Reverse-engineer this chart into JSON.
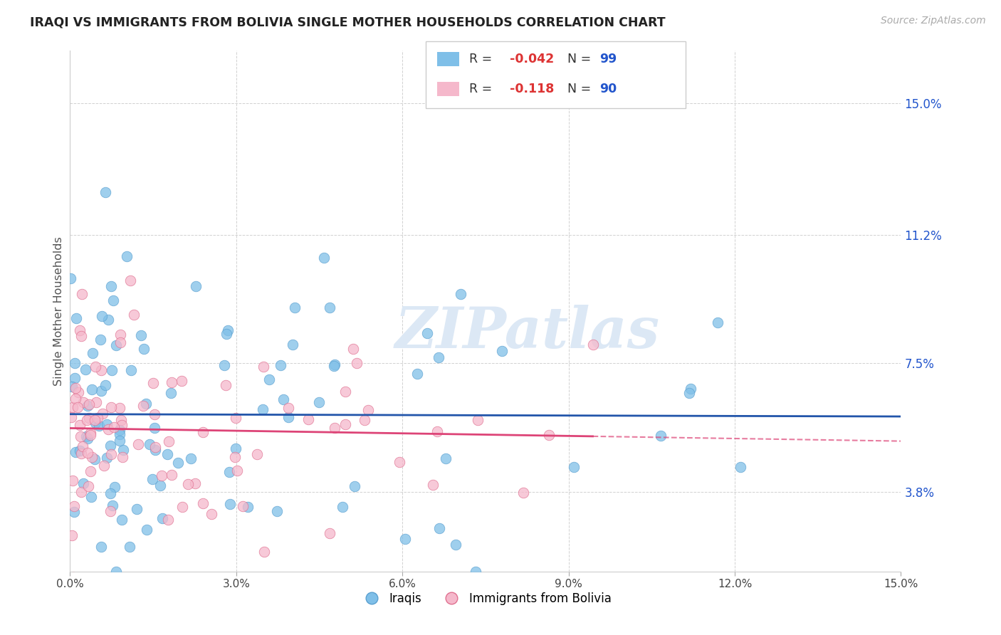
{
  "title": "IRAQI VS IMMIGRANTS FROM BOLIVIA SINGLE MOTHER HOUSEHOLDS CORRELATION CHART",
  "source": "Source: ZipAtlas.com",
  "ylabel": "Single Mother Households",
  "y_ticks": [
    3.8,
    7.5,
    11.2,
    15.0
  ],
  "x_ticks": [
    0.0,
    3.0,
    6.0,
    9.0,
    12.0,
    15.0
  ],
  "x_min": 0.0,
  "x_max": 15.0,
  "y_min": 1.5,
  "y_max": 16.5,
  "iraqi_color": "#7fbfe8",
  "iraqi_edge_color": "#5aa0d0",
  "bolivia_color": "#f5b8cb",
  "bolivia_edge_color": "#e07090",
  "trend_iraqi_color": "#2255aa",
  "trend_bolivia_color": "#dd4477",
  "legend_R_iraqi": "-0.042",
  "legend_N_iraqi": "99",
  "legend_R_bolivia": "-0.118",
  "legend_N_bolivia": "90",
  "watermark": "ZIPatlas",
  "legend_R_color": "#dd3333",
  "legend_N_color": "#2255cc",
  "legend_label_color": "#333333"
}
